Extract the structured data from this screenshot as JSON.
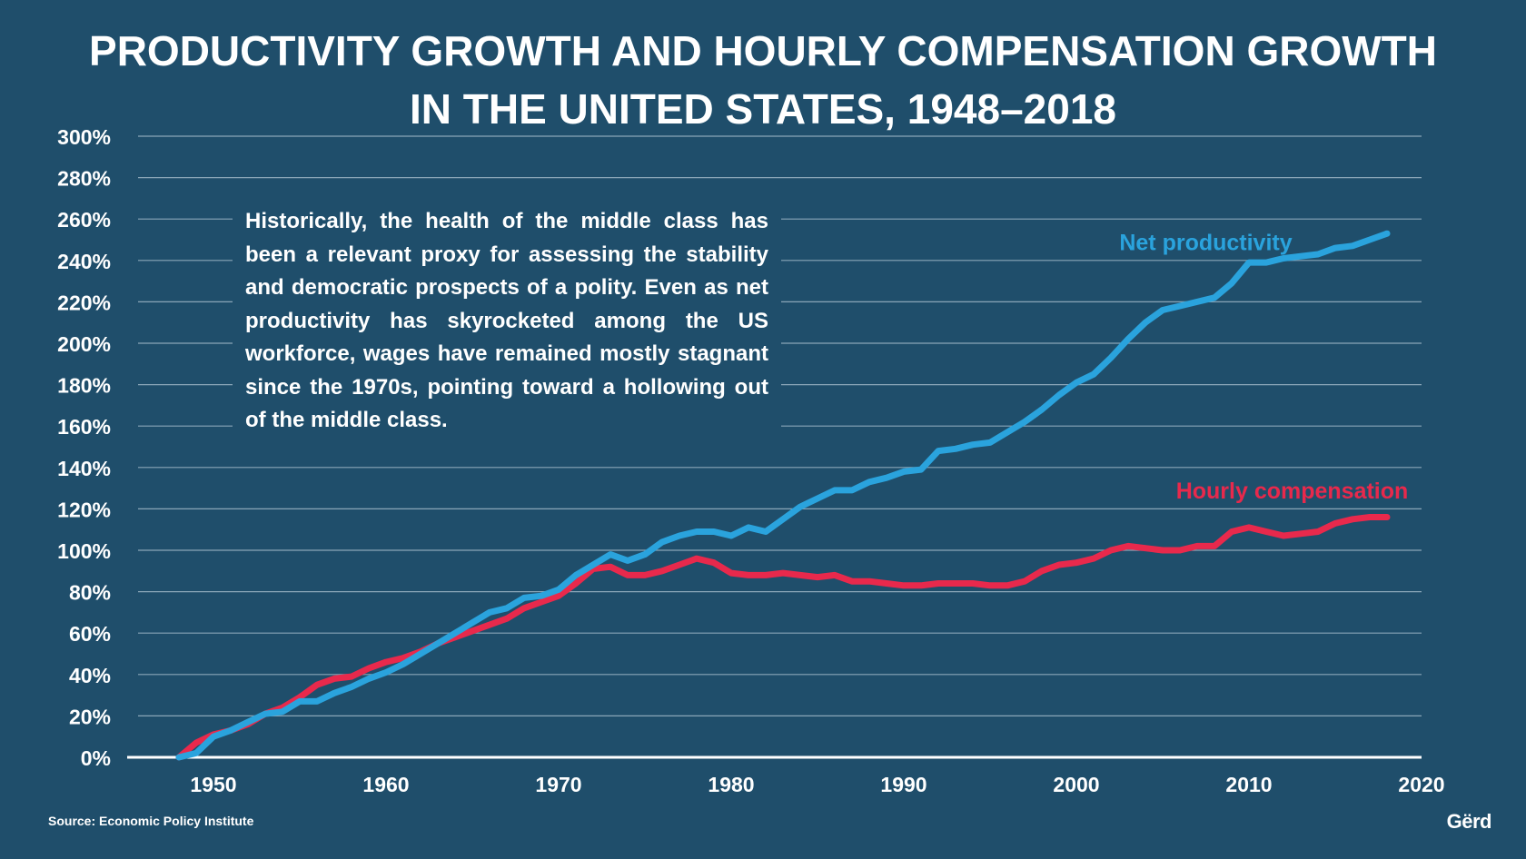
{
  "chart_data": {
    "type": "line",
    "title_lines": [
      "PRODUCTIVITY GROWTH AND HOURLY COMPENSATION GROWTH",
      "IN THE UNITED STATES, 1948–2018"
    ],
    "xlabel": "",
    "ylabel": "",
    "xlim": [
      1945,
      2020
    ],
    "ylim": [
      0,
      300
    ],
    "x_ticks": [
      "1950",
      "1960",
      "1970",
      "1980",
      "1990",
      "2000",
      "2010",
      "2020"
    ],
    "y_ticks": [
      "0%",
      "20%",
      "40%",
      "60%",
      "80%",
      "100%",
      "120%",
      "140%",
      "160%",
      "180%",
      "200%",
      "220%",
      "240%",
      "260%",
      "280%",
      "300%"
    ],
    "grid": true,
    "x": [
      1948,
      1949,
      1950,
      1951,
      1952,
      1953,
      1954,
      1955,
      1956,
      1957,
      1958,
      1959,
      1960,
      1961,
      1962,
      1963,
      1964,
      1965,
      1966,
      1967,
      1968,
      1969,
      1970,
      1971,
      1972,
      1973,
      1974,
      1975,
      1976,
      1977,
      1978,
      1979,
      1980,
      1981,
      1982,
      1983,
      1984,
      1985,
      1986,
      1987,
      1988,
      1989,
      1990,
      1991,
      1992,
      1993,
      1994,
      1995,
      1996,
      1997,
      1998,
      1999,
      2000,
      2001,
      2002,
      2003,
      2004,
      2005,
      2006,
      2007,
      2008,
      2009,
      2010,
      2011,
      2012,
      2013,
      2014,
      2015,
      2016,
      2017,
      2018
    ],
    "series": [
      {
        "name": "Net productivity",
        "color": "#2aa3dd",
        "values": [
          0,
          2,
          10,
          13,
          17,
          21,
          22,
          27,
          27,
          31,
          34,
          38,
          41,
          45,
          50,
          55,
          60,
          65,
          70,
          72,
          77,
          78,
          81,
          88,
          93,
          98,
          95,
          98,
          104,
          107,
          109,
          109,
          107,
          111,
          109,
          115,
          121,
          125,
          129,
          129,
          133,
          135,
          138,
          139,
          148,
          149,
          151,
          152,
          157,
          162,
          168,
          175,
          181,
          185,
          193,
          202,
          210,
          216,
          218,
          220,
          222,
          229,
          239,
          239,
          241,
          242,
          243,
          246,
          247,
          250,
          253
        ]
      },
      {
        "name": "Hourly compensation",
        "color": "#e8294c",
        "values": [
          0,
          7,
          11,
          13,
          16,
          21,
          24,
          29,
          35,
          38,
          39,
          43,
          46,
          48,
          51,
          55,
          58,
          61,
          64,
          67,
          72,
          75,
          78,
          84,
          91,
          92,
          88,
          88,
          90,
          93,
          96,
          94,
          89,
          88,
          88,
          89,
          88,
          87,
          88,
          85,
          85,
          84,
          83,
          83,
          84,
          84,
          84,
          83,
          83,
          85,
          90,
          93,
          94,
          96,
          100,
          102,
          101,
          100,
          100,
          102,
          102,
          109,
          111,
          109,
          107,
          108,
          109,
          113,
          115,
          116,
          116
        ]
      }
    ]
  },
  "annotation_text": "Historically, the health of the middle class has been a relevant proxy for assessing the stability and democratic prospects of a polity. Even as net productivity has skyrocketed among the US workforce, wages have remained mostly stagnant since the 1970s, pointing toward a hollowing out of the middle class.",
  "source_text": "Source: Economic Policy Institute",
  "logo_text": "Gërd",
  "colors": {
    "background": "#1f4e6b",
    "net_productivity": "#2aa3dd",
    "hourly_compensation": "#e8294c",
    "grid": "#8aa6b8"
  }
}
